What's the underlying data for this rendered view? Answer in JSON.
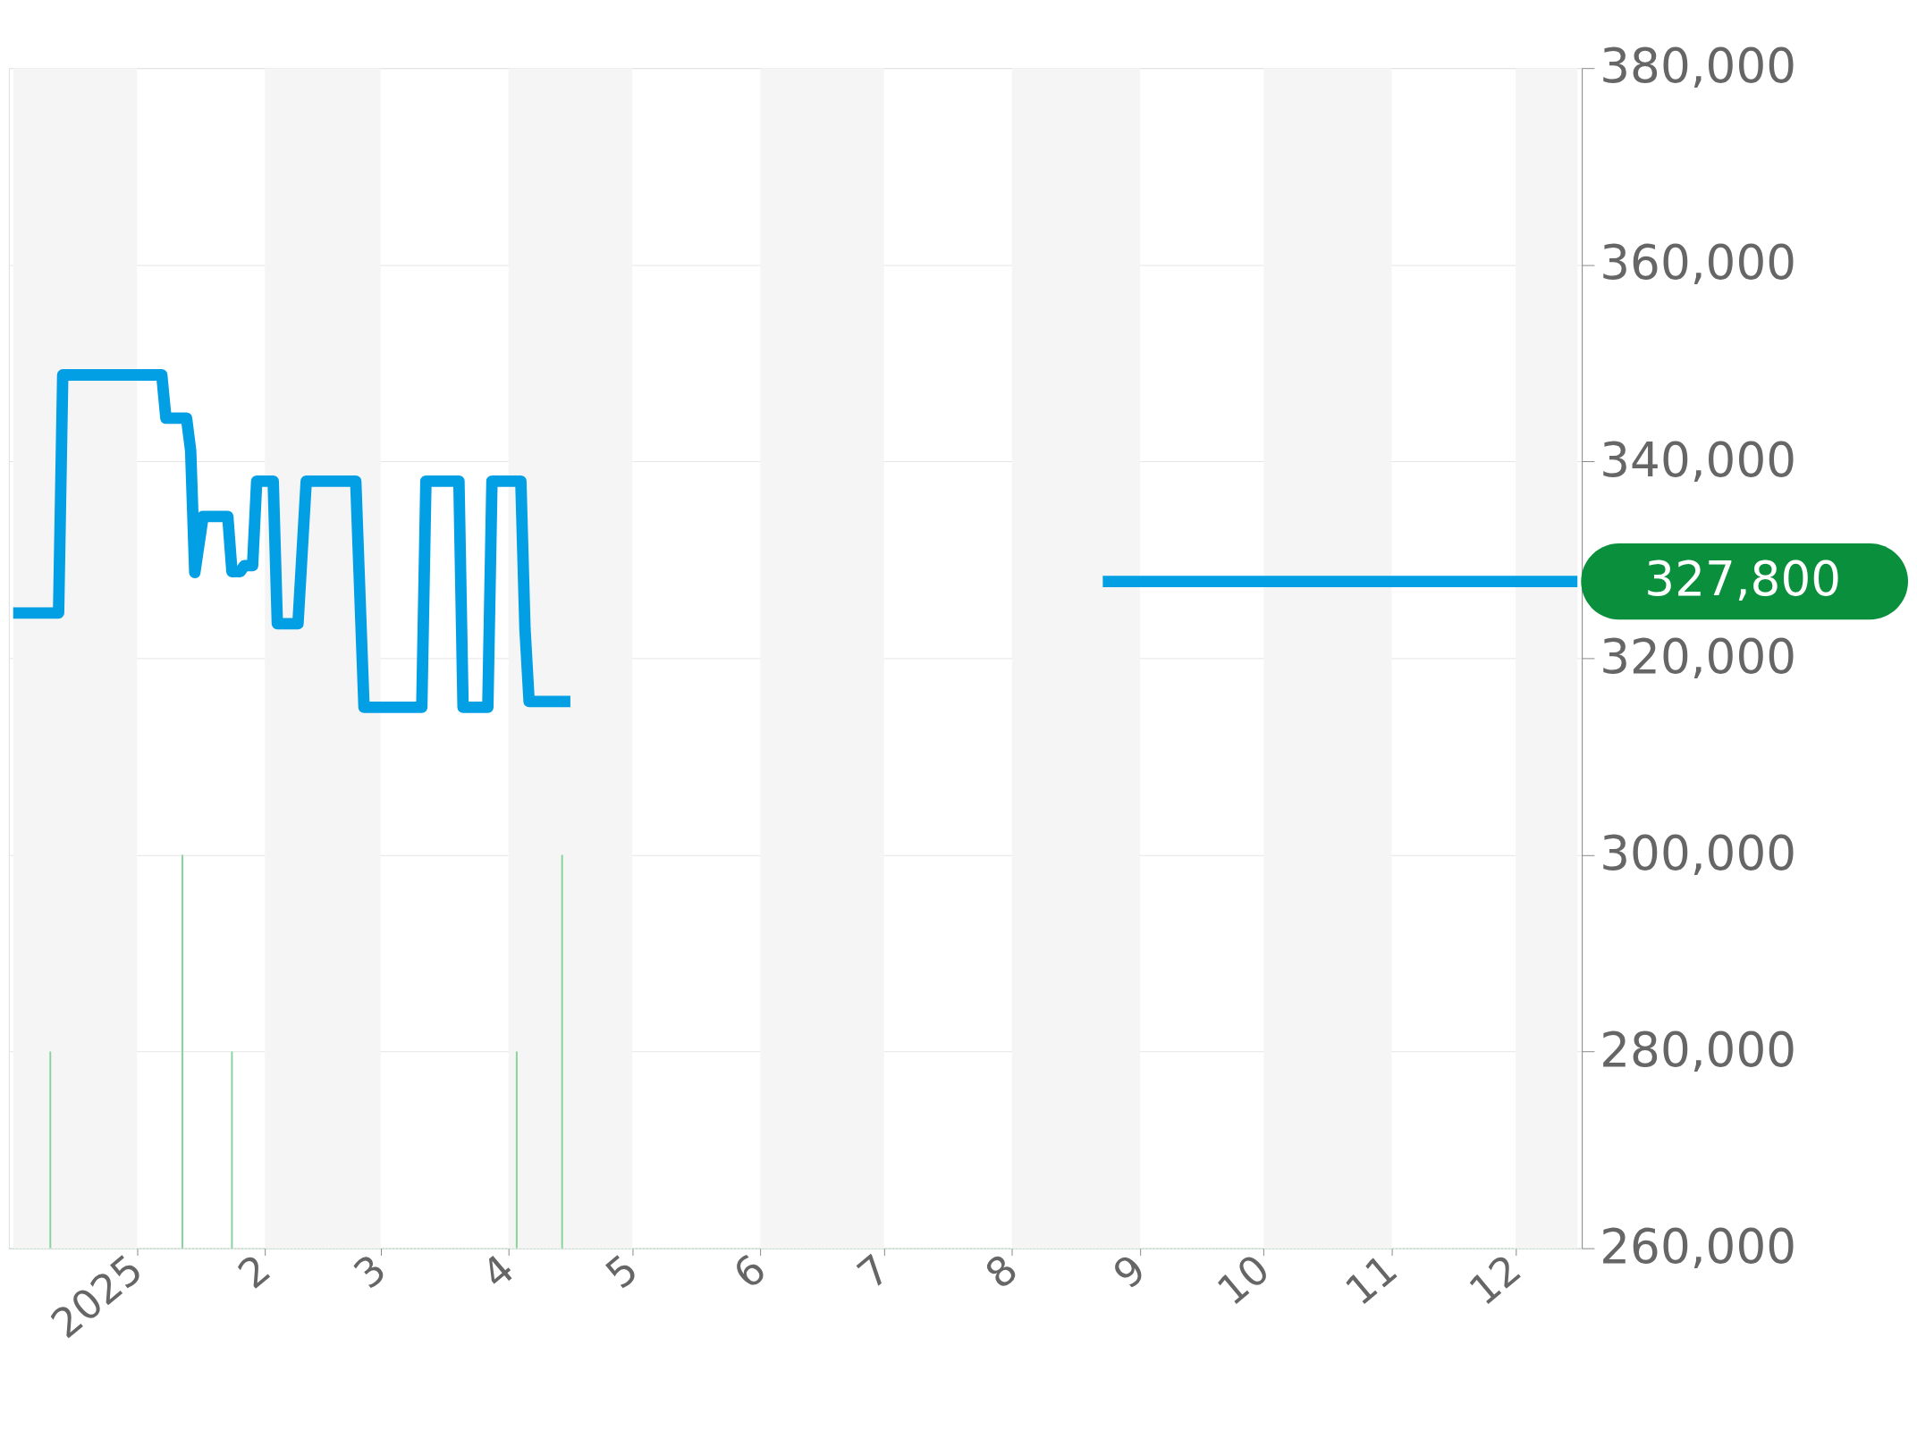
{
  "chart_data": {
    "type": "line",
    "xlim": [
      "2024-12-02",
      "2025-12-16"
    ],
    "ylim": [
      260000,
      380000
    ],
    "yticks": [
      {
        "value": 260000,
        "label": "260,000"
      },
      {
        "value": 280000,
        "label": "280,000"
      },
      {
        "value": 300000,
        "label": "300,000"
      },
      {
        "value": 320000,
        "label": "320,000"
      },
      {
        "value": 340000,
        "label": "340,000"
      },
      {
        "value": 360000,
        "label": "360,000"
      },
      {
        "value": 380000,
        "label": "380,000"
      }
    ],
    "xticks": [
      {
        "value": "2025-01-01",
        "label": "2025"
      },
      {
        "value": "2025-02-01",
        "label": "2"
      },
      {
        "value": "2025-03-01",
        "label": "3"
      },
      {
        "value": "2025-04-01",
        "label": "4"
      },
      {
        "value": "2025-05-01",
        "label": "5"
      },
      {
        "value": "2025-06-01",
        "label": "6"
      },
      {
        "value": "2025-07-01",
        "label": "7"
      },
      {
        "value": "2025-08-01",
        "label": "8"
      },
      {
        "value": "2025-09-01",
        "label": "9"
      },
      {
        "value": "2025-10-01",
        "label": "10"
      },
      {
        "value": "2025-11-01",
        "label": "11"
      },
      {
        "value": "2025-12-01",
        "label": "12"
      }
    ],
    "grid": "y",
    "marker": "none",
    "line_style": "solid",
    "series": [
      {
        "color": "#039fe5",
        "x": [
          "2024-12-02",
          "2024-12-13",
          "2024-12-14",
          "2025-01-07",
          "2025-01-08",
          "2025-01-13",
          "2025-01-14",
          "2025-01-15",
          "2025-01-17",
          "2025-01-23",
          "2025-01-24",
          "2025-01-26",
          "2025-01-27",
          "2025-01-29",
          "2025-01-30",
          "2025-02-03",
          "2025-02-04",
          "2025-02-09",
          "2025-02-11",
          "2025-02-23",
          "2025-02-25",
          "2025-03-11",
          "2025-03-12",
          "2025-03-20",
          "2025-03-21",
          "2025-03-27",
          "2025-03-28",
          "2025-04-04",
          "2025-04-05",
          "2025-04-06",
          "2025-04-16"
        ],
        "values": [
          324600,
          324600,
          348800,
          348800,
          344400,
          344400,
          341100,
          328700,
          334400,
          334400,
          328800,
          328800,
          329400,
          329400,
          338000,
          338000,
          323500,
          323500,
          338000,
          338000,
          315000,
          315000,
          338000,
          338000,
          315000,
          315000,
          338000,
          338000,
          323000,
          315600,
          315600
        ]
      },
      {
        "color": "#039fe5",
        "x": [
          "2025-08-23",
          "2025-12-16"
        ],
        "values": [
          327800,
          327800
        ]
      },
      {
        "type": "bar",
        "color": "#86d49a",
        "x": [
          "2024-12-11",
          "2025-01-12",
          "2025-01-24",
          "2025-04-03",
          "2025-04-14"
        ],
        "values": [
          280000,
          300000,
          280000,
          280000,
          300000
        ]
      }
    ],
    "bands": [
      {
        "axis": "x",
        "from": "2024-12-02",
        "to": "2025-01-01",
        "color": "#f5f5f5"
      },
      {
        "axis": "x",
        "from": "2025-02-01",
        "to": "2025-03-01",
        "color": "#f5f5f5"
      },
      {
        "axis": "x",
        "from": "2025-04-01",
        "to": "2025-05-01",
        "color": "#f5f5f5"
      },
      {
        "axis": "x",
        "from": "2025-06-01",
        "to": "2025-07-01",
        "color": "#f5f5f5"
      },
      {
        "axis": "x",
        "from": "2025-08-01",
        "to": "2025-09-01",
        "color": "#f5f5f5"
      },
      {
        "axis": "x",
        "from": "2025-10-01",
        "to": "2025-11-01",
        "color": "#f5f5f5"
      },
      {
        "axis": "x",
        "from": "2025-12-01",
        "to": "2025-12-16",
        "color": "#f5f5f5"
      }
    ],
    "annotations": [
      {
        "text": "327,800",
        "x": "2025-12-16",
        "y": 327800
      }
    ]
  }
}
